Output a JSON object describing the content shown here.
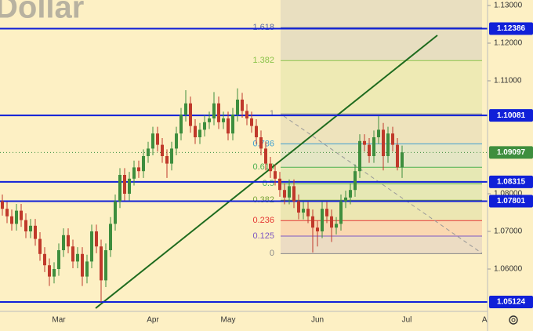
{
  "chart_data": {
    "type": "candlestick",
    "title": "Dollar",
    "categories": [
      null,
      null,
      null,
      null,
      null,
      null,
      null,
      null,
      null,
      null,
      null,
      null,
      "Mar",
      null,
      null,
      null,
      null,
      null,
      null,
      null,
      null,
      null,
      null,
      null,
      null,
      null,
      null,
      null,
      null,
      null,
      null,
      null,
      "Apr",
      null,
      null,
      null,
      null,
      null,
      null,
      null,
      null,
      null,
      null,
      null,
      null,
      null,
      null,
      null,
      "May",
      null,
      null,
      null,
      null,
      null,
      null,
      null,
      null,
      null,
      null,
      null,
      null,
      null,
      null,
      null,
      null,
      null,
      null,
      "Jun",
      null,
      null,
      null,
      null,
      null,
      null,
      null,
      null,
      null,
      null,
      null,
      null,
      null,
      null,
      null,
      null,
      null,
      null,
      "Jul",
      null,
      null,
      null,
      null,
      null,
      null,
      null,
      null,
      null,
      null,
      null,
      null,
      null,
      null,
      null,
      null,
      "Au"
    ],
    "open": [
      1.078,
      1.076,
      1.074,
      1.072,
      1.0755,
      1.073,
      1.07,
      1.0715,
      1.068,
      1.064,
      1.061,
      1.058,
      1.06,
      1.065,
      1.069,
      1.066,
      1.062,
      1.064,
      1.058,
      1.062,
      1.07,
      1.066,
      1.057,
      1.065,
      1.072,
      1.078,
      1.085,
      1.08,
      1.084,
      1.087,
      1.086,
      1.09,
      1.092,
      1.096,
      1.093,
      1.09,
      1.088,
      1.092,
      1.096,
      1.101,
      1.104,
      1.098,
      1.095,
      1.097,
      1.099,
      1.1,
      1.104,
      1.099,
      1.1,
      1.096,
      1.101,
      1.105,
      1.102,
      1.1,
      1.098,
      1.095,
      1.092,
      1.088,
      1.086,
      1.084,
      1.081,
      1.079,
      1.082,
      1.078,
      1.075,
      1.076,
      1.074,
      1.071,
      1.07,
      1.076,
      1.074,
      1.071,
      1.072,
      1.078,
      1.079,
      1.081,
      1.086,
      1.094,
      1.093,
      1.09,
      1.095,
      1.097,
      1.09,
      1.096,
      1.093,
      1.087,
      null,
      null,
      null,
      null,
      null,
      null,
      null,
      null,
      null,
      null,
      null,
      null,
      null,
      null,
      null,
      null,
      null,
      null
    ],
    "high": [
      1.0798,
      1.0778,
      1.0758,
      1.0773,
      1.0773,
      1.0748,
      1.0733,
      1.0733,
      1.0698,
      1.0658,
      1.0628,
      1.0618,
      1.0668,
      1.0708,
      1.0708,
      1.0678,
      1.0658,
      1.0658,
      1.0638,
      1.0718,
      1.0718,
      1.0678,
      1.0668,
      1.0738,
      1.0798,
      1.0868,
      1.0868,
      1.0858,
      1.0888,
      1.0888,
      1.0918,
      1.0938,
      1.0978,
      1.0978,
      1.0948,
      1.0918,
      1.0938,
      1.0978,
      1.1028,
      1.1075,
      1.1058,
      1.0998,
      1.0988,
      1.1008,
      1.1018,
      1.107,
      1.1058,
      1.1018,
      1.1018,
      1.1028,
      1.108,
      1.1068,
      1.1038,
      1.1018,
      1.0998,
      1.0968,
      1.0938,
      1.0898,
      1.0878,
      1.0858,
      1.0828,
      1.0838,
      1.0838,
      1.0798,
      1.0778,
      1.0778,
      1.0758,
      1.0728,
      1.0778,
      1.0778,
      1.0758,
      1.0738,
      1.0798,
      1.0808,
      1.0828,
      1.0878,
      1.0958,
      1.0958,
      1.0948,
      1.0968,
      1.1006,
      1.0988,
      1.0978,
      1.0978,
      1.0948,
      1.0928,
      null,
      null,
      null,
      null,
      null,
      null,
      null,
      null,
      null,
      null,
      null,
      null,
      null,
      null,
      null,
      null,
      null,
      null
    ],
    "low": [
      1.0742,
      1.0722,
      1.0702,
      1.0702,
      1.0712,
      1.0682,
      1.0682,
      1.0662,
      1.0622,
      1.0592,
      1.0555,
      1.0562,
      1.0582,
      1.0632,
      1.0642,
      1.0602,
      1.0602,
      1.0555,
      1.0562,
      1.0602,
      1.0642,
      1.0512,
      1.0552,
      1.0632,
      1.0702,
      1.0762,
      1.0782,
      1.0782,
      1.0822,
      1.0842,
      1.0842,
      1.0882,
      1.0902,
      1.0912,
      1.0882,
      1.0842,
      1.0862,
      1.0902,
      1.0942,
      1.0992,
      1.0962,
      1.0932,
      1.0932,
      1.0952,
      1.0972,
      1.0982,
      1.0972,
      1.0972,
      1.0942,
      1.0942,
      1.0992,
      1.1002,
      1.0982,
      1.0962,
      1.0932,
      1.0902,
      1.0862,
      1.0842,
      1.0822,
      1.0792,
      1.0772,
      1.0772,
      1.0762,
      1.0732,
      1.0732,
      1.0722,
      1.0644,
      1.066,
      1.0682,
      1.0722,
      1.0672,
      1.0692,
      1.0702,
      1.0762,
      1.0772,
      1.0792,
      1.0842,
      1.0912,
      1.0882,
      1.0882,
      1.0932,
      1.0862,
      1.0882,
      1.0912,
      1.0862,
      1.0842,
      null,
      null,
      null,
      null,
      null,
      null,
      null,
      null,
      null,
      null,
      null,
      null,
      null,
      null,
      null,
      null,
      null,
      null
    ],
    "close": [
      1.076,
      1.074,
      1.072,
      1.0755,
      1.073,
      1.07,
      1.0715,
      1.068,
      1.064,
      1.061,
      1.058,
      1.06,
      1.065,
      1.069,
      1.066,
      1.062,
      1.064,
      1.058,
      1.062,
      1.07,
      1.066,
      1.057,
      1.065,
      1.072,
      1.078,
      1.085,
      1.08,
      1.084,
      1.087,
      1.086,
      1.09,
      1.092,
      1.096,
      1.093,
      1.09,
      1.088,
      1.092,
      1.096,
      1.101,
      1.104,
      1.098,
      1.095,
      1.097,
      1.099,
      1.1,
      1.104,
      1.099,
      1.1,
      1.096,
      1.101,
      1.105,
      1.102,
      1.1,
      1.098,
      1.095,
      1.092,
      1.088,
      1.086,
      1.084,
      1.081,
      1.079,
      1.082,
      1.078,
      1.075,
      1.076,
      1.074,
      1.071,
      1.07,
      1.076,
      1.074,
      1.071,
      1.072,
      1.078,
      1.079,
      1.081,
      1.086,
      1.094,
      1.093,
      1.09,
      1.095,
      1.097,
      1.09,
      1.096,
      1.093,
      1.087,
      1.091,
      null,
      null,
      null,
      null,
      null,
      null,
      null,
      null,
      null,
      null,
      null,
      null,
      null,
      null,
      null,
      null,
      null,
      null
    ],
    "up_color": "#3e8e3e",
    "down_color": "#c0392b",
    "ylim": [
      1.04875,
      1.13146
    ],
    "yticks": [
      {
        "value": 1.13,
        "label": "1.13000"
      },
      {
        "value": 1.12,
        "label": "1.12000"
      },
      {
        "value": 1.11,
        "label": "1.11000"
      },
      {
        "value": 1.08,
        "label": "1.08000"
      },
      {
        "value": 1.07,
        "label": "1.07000"
      },
      {
        "value": 1.06,
        "label": "1.06000"
      }
    ],
    "hlines": [
      1.12386,
      1.10081,
      1.08315,
      1.07801,
      1.05124
    ],
    "hline_color": "#1020d8",
    "last_price": 1.09097,
    "last_price_color": "#3e8e3e",
    "fib": {
      "low": 1.0641,
      "high": 1.1012,
      "levels": [
        1.618,
        1.382,
        1,
        0.786,
        0.618,
        0.5,
        0.382,
        0.236,
        0.125,
        0
      ],
      "colors": [
        "#5868a8",
        "#8bc34a",
        "#888888",
        "#3f9fd0",
        "#4caf50",
        "#4caf50",
        "#7aa53a",
        "#e53935",
        "#7e57c2",
        "#888888"
      ]
    }
  }
}
